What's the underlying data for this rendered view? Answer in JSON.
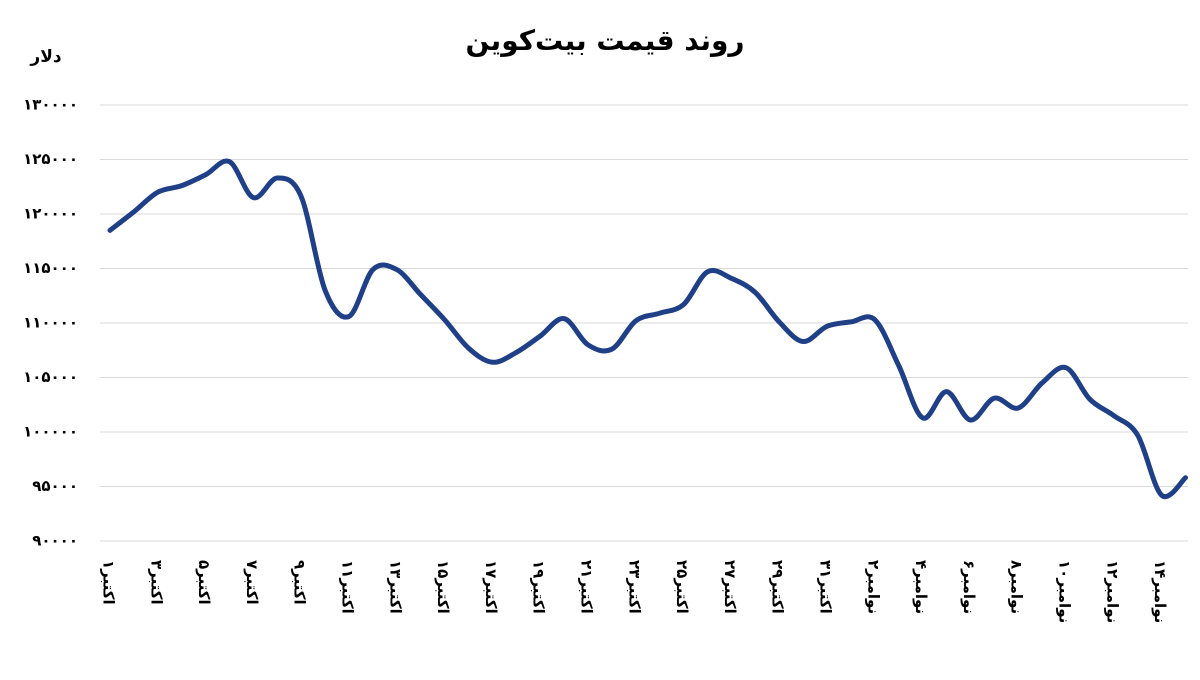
{
  "chart_data": {
    "type": "line",
    "title": "روند قیمت بیت‌کوین",
    "y_label": "دلار",
    "categories": [
      "۱اکتبر",
      null,
      "۳اکتبر",
      null,
      "۵اکتبر",
      null,
      "۷اکتبر",
      null,
      "۹اکتبر",
      null,
      "۱۱اکتبر",
      null,
      "۱۳اکتبر",
      null,
      "۱۵اکتبر",
      null,
      "۱۷اکتبر",
      null,
      "۱۹اکتبر",
      null,
      "۲۱اکتبر",
      null,
      "۲۳اکتبر",
      null,
      "۲۵اکتبر",
      null,
      "۲۷اکتبر",
      null,
      "۲۹اکتبر",
      null,
      "۳۱اکتبر",
      null,
      "۲نوامبر",
      null,
      "۴نوامبر",
      null,
      "۶نوامبر",
      null,
      "۸نوامبر",
      null,
      "۱۰نوامبر",
      null,
      "۱۲نوامبر",
      null,
      "۱۴نوامبر",
      null
    ],
    "values": [
      118500,
      120200,
      122000,
      122600,
      123600,
      124800,
      121500,
      123300,
      121600,
      113000,
      110600,
      114900,
      114900,
      112600,
      110300,
      107700,
      106400,
      107300,
      108800,
      110400,
      108000,
      107600,
      110200,
      110900,
      111700,
      114700,
      114100,
      112800,
      110100,
      108300,
      109700,
      110100,
      110300,
      106100,
      101300,
      103700,
      101100,
      103100,
      102200,
      104500,
      105900,
      103000,
      101500,
      99700,
      94200,
      95800
    ],
    "color": "#1f3f86",
    "ylim": [
      90000,
      130000
    ],
    "yticks": [
      {
        "value": 90000,
        "label": "۹۰۰۰۰"
      },
      {
        "value": 95000,
        "label": "۹۵۰۰۰"
      },
      {
        "value": 100000,
        "label": "۱۰۰۰۰۰"
      },
      {
        "value": 105000,
        "label": "۱۰۵۰۰۰"
      },
      {
        "value": 110000,
        "label": "۱۱۰۰۰۰"
      },
      {
        "value": 115000,
        "label": "۱۱۵۰۰۰"
      },
      {
        "value": 120000,
        "label": "۱۲۰۰۰۰"
      },
      {
        "value": 125000,
        "label": "۱۲۵۰۰۰"
      },
      {
        "value": 130000,
        "label": "۱۳۰۰۰۰"
      }
    ],
    "grid": true
  }
}
